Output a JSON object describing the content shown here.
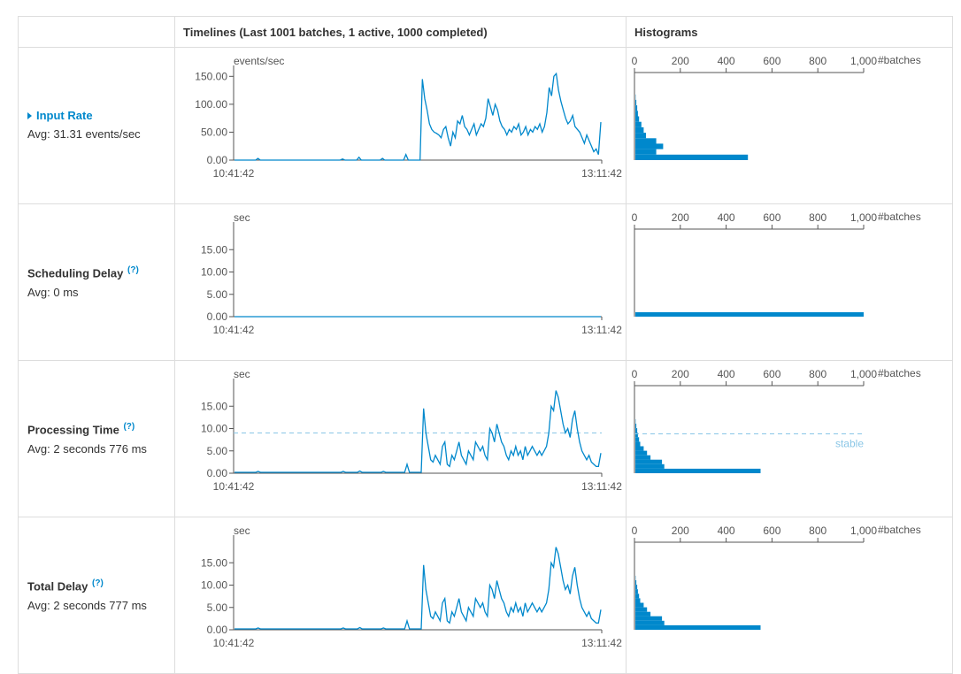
{
  "table": {
    "header_blank": "",
    "timelines_header": "Timelines (Last 1001 batches, 1 active, 1000 completed)",
    "histograms_header": "Histograms"
  },
  "colors": {
    "series": "#0088cc",
    "axis": "#555555",
    "threshold": "#89c6e6",
    "border": "#dddddd",
    "link": "#0088cc"
  },
  "metrics": [
    {
      "title": "Input Rate",
      "avg": "Avg: 31.31 events/sec",
      "has_help": false,
      "help": ""
    },
    {
      "title": "Scheduling Delay",
      "avg": "Avg: 0 ms",
      "has_help": true,
      "help": "(?)"
    },
    {
      "title": "Processing Time",
      "avg": "Avg: 2 seconds 776 ms",
      "has_help": true,
      "help": "(?)"
    },
    {
      "title": "Total Delay",
      "avg": "Avg: 2 seconds 777 ms",
      "has_help": true,
      "help": "(?)"
    }
  ],
  "chart_data": [
    {
      "type": "line",
      "name": "input-rate-timeline",
      "ylabel": "events/sec",
      "ylim": [
        0,
        160
      ],
      "yticks": [
        "0.00",
        "50.00",
        "100.00",
        "150.00"
      ],
      "x_start": "10:41:42",
      "x_end": "13:11:42",
      "series_values": [
        0,
        0,
        0,
        0,
        0,
        0,
        0,
        0,
        0,
        0,
        3,
        0,
        0,
        0,
        0,
        0,
        0,
        0,
        0,
        0,
        0,
        0,
        0,
        0,
        0,
        0,
        0,
        0,
        0,
        0,
        0,
        0,
        0,
        0,
        0,
        0,
        0,
        0,
        0,
        0,
        0,
        0,
        0,
        0,
        0,
        0,
        2,
        0,
        0,
        0,
        0,
        0,
        0,
        5,
        0,
        0,
        0,
        0,
        0,
        0,
        0,
        0,
        0,
        3,
        0,
        0,
        0,
        0,
        0,
        0,
        0,
        0,
        0,
        10,
        0,
        0,
        0,
        0,
        0,
        0,
        145,
        110,
        90,
        65,
        55,
        50,
        48,
        45,
        40,
        55,
        60,
        40,
        25,
        50,
        40,
        70,
        65,
        80,
        60,
        55,
        45,
        55,
        65,
        45,
        55,
        65,
        60,
        75,
        110,
        95,
        80,
        100,
        90,
        70,
        60,
        55,
        45,
        55,
        50,
        60,
        55,
        65,
        45,
        50,
        60,
        45,
        55,
        50,
        60,
        55,
        65,
        50,
        60,
        85,
        130,
        115,
        150,
        155,
        125,
        105,
        90,
        75,
        65,
        70,
        80,
        60,
        55,
        50,
        40,
        30,
        45,
        35,
        25,
        15,
        20,
        10,
        68
      ]
    },
    {
      "type": "line",
      "name": "scheduling-delay-timeline",
      "ylabel": "sec",
      "ylim": [
        0,
        20
      ],
      "yticks": [
        "0.00",
        "5.00",
        "10.00",
        "15.00"
      ],
      "x_start": "10:41:42",
      "x_end": "13:11:42",
      "series_values": [
        0,
        0
      ]
    },
    {
      "type": "line",
      "name": "processing-time-timeline",
      "ylabel": "sec",
      "ylim": [
        0,
        20
      ],
      "threshold": 9,
      "yticks": [
        "0.00",
        "5.00",
        "10.00",
        "15.00"
      ],
      "x_start": "10:41:42",
      "x_end": "13:11:42",
      "series_values": [
        0.2,
        0.2,
        0.2,
        0.2,
        0.2,
        0.2,
        0.2,
        0.2,
        0.2,
        0.2,
        0.4,
        0.2,
        0.2,
        0.2,
        0.2,
        0.2,
        0.2,
        0.2,
        0.2,
        0.2,
        0.2,
        0.2,
        0.2,
        0.2,
        0.2,
        0.2,
        0.2,
        0.2,
        0.2,
        0.2,
        0.2,
        0.2,
        0.2,
        0.2,
        0.2,
        0.2,
        0.2,
        0.2,
        0.2,
        0.2,
        0.2,
        0.2,
        0.2,
        0.2,
        0.2,
        0.2,
        0.4,
        0.2,
        0.2,
        0.2,
        0.2,
        0.2,
        0.2,
        0.5,
        0.2,
        0.2,
        0.2,
        0.2,
        0.2,
        0.2,
        0.2,
        0.2,
        0.2,
        0.4,
        0.2,
        0.2,
        0.2,
        0.2,
        0.2,
        0.2,
        0.2,
        0.2,
        0.2,
        2,
        0.2,
        0.2,
        0.2,
        0.2,
        0.2,
        0.2,
        14.5,
        9,
        6,
        3,
        2.5,
        4,
        3,
        2,
        6,
        7,
        2,
        1.5,
        4,
        3,
        5,
        7,
        4,
        3,
        2,
        5,
        4,
        3,
        7,
        6,
        5,
        6,
        4,
        3,
        10,
        9,
        7,
        11,
        9,
        7,
        6,
        4,
        3,
        5,
        4,
        6,
        4,
        5,
        3,
        6,
        4,
        5,
        6,
        5,
        4,
        5,
        4,
        5,
        6,
        9,
        15,
        14,
        18.5,
        17,
        14,
        11,
        9,
        10,
        8,
        12,
        14,
        10,
        7,
        5,
        4,
        3,
        4,
        2.5,
        2,
        1.5,
        1.5,
        4.5
      ]
    },
    {
      "type": "line",
      "name": "total-delay-timeline",
      "ylabel": "sec",
      "ylim": [
        0,
        20
      ],
      "yticks": [
        "0.00",
        "5.00",
        "10.00",
        "15.00"
      ],
      "x_start": "10:41:42",
      "x_end": "13:11:42",
      "series_values": [
        0.2,
        0.2,
        0.2,
        0.2,
        0.2,
        0.2,
        0.2,
        0.2,
        0.2,
        0.2,
        0.4,
        0.2,
        0.2,
        0.2,
        0.2,
        0.2,
        0.2,
        0.2,
        0.2,
        0.2,
        0.2,
        0.2,
        0.2,
        0.2,
        0.2,
        0.2,
        0.2,
        0.2,
        0.2,
        0.2,
        0.2,
        0.2,
        0.2,
        0.2,
        0.2,
        0.2,
        0.2,
        0.2,
        0.2,
        0.2,
        0.2,
        0.2,
        0.2,
        0.2,
        0.2,
        0.2,
        0.4,
        0.2,
        0.2,
        0.2,
        0.2,
        0.2,
        0.2,
        0.5,
        0.2,
        0.2,
        0.2,
        0.2,
        0.2,
        0.2,
        0.2,
        0.2,
        0.2,
        0.4,
        0.2,
        0.2,
        0.2,
        0.2,
        0.2,
        0.2,
        0.2,
        0.2,
        0.2,
        2,
        0.2,
        0.2,
        0.2,
        0.2,
        0.2,
        0.2,
        14.5,
        9,
        6,
        3,
        2.5,
        4,
        3,
        2,
        6,
        7,
        2,
        1.5,
        4,
        3,
        5,
        7,
        4,
        3,
        2,
        5,
        4,
        3,
        7,
        6,
        5,
        6,
        4,
        3,
        10,
        9,
        7,
        11,
        9,
        7,
        6,
        4,
        3,
        5,
        4,
        6,
        4,
        5,
        3,
        6,
        4,
        5,
        6,
        5,
        4,
        5,
        4,
        5,
        6,
        9,
        15,
        14,
        18.5,
        17,
        14,
        11,
        9,
        10,
        8,
        12,
        14,
        10,
        7,
        5,
        4,
        3,
        4,
        2.5,
        2,
        1.5,
        1.5,
        4.5
      ]
    },
    {
      "type": "bar",
      "name": "input-rate-histogram",
      "orientation": "horizontal",
      "xlabel": "#batches",
      "xlim": [
        0,
        1000
      ],
      "xticks": [
        "0",
        "200",
        "400",
        "600",
        "800",
        "1,000"
      ],
      "bins_bottom_to_top": [
        495,
        95,
        125,
        95,
        50,
        40,
        30,
        20,
        15,
        12,
        8,
        5,
        3,
        2,
        1,
        1
      ]
    },
    {
      "type": "bar",
      "name": "scheduling-delay-histogram",
      "orientation": "horizontal",
      "xlabel": "#batches",
      "xlim": [
        0,
        1000
      ],
      "xticks": [
        "0",
        "200",
        "400",
        "600",
        "800",
        "1,000"
      ],
      "bins_bottom_to_top": [
        1000,
        0,
        0,
        0,
        0,
        0,
        0,
        0,
        0,
        0,
        0,
        0,
        0,
        0,
        0,
        0,
        0,
        0,
        0,
        0
      ]
    },
    {
      "type": "bar",
      "name": "processing-time-histogram",
      "orientation": "horizontal",
      "xlabel": "#batches",
      "xlim": [
        0,
        1000
      ],
      "xticks": [
        "0",
        "200",
        "400",
        "600",
        "800",
        "1,000"
      ],
      "threshold": 9,
      "threshold_label": "stable",
      "bins_bottom_to_top": [
        550,
        130,
        120,
        70,
        55,
        40,
        25,
        20,
        15,
        12,
        8,
        5,
        4,
        3,
        2,
        1,
        1,
        1
      ],
      "bin_max": 18.5
    },
    {
      "type": "bar",
      "name": "total-delay-histogram",
      "orientation": "horizontal",
      "xlabel": "#batches",
      "xlim": [
        0,
        1000
      ],
      "xticks": [
        "0",
        "200",
        "400",
        "600",
        "800",
        "1,000"
      ],
      "bins_bottom_to_top": [
        550,
        130,
        120,
        70,
        55,
        40,
        25,
        20,
        15,
        12,
        8,
        5,
        4,
        3,
        2,
        1,
        1,
        1
      ],
      "bin_max": 18.5
    }
  ]
}
